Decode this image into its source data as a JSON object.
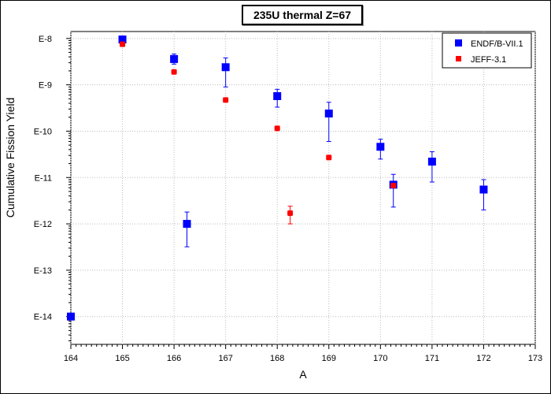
{
  "chart_data": {
    "type": "scatter",
    "title": "235U thermal Z=67",
    "xlabel": "A",
    "ylabel": "Cumulative Fission Yield",
    "xlim": [
      164,
      173
    ],
    "ylim_log10": [
      -14.6,
      -7.85
    ],
    "y_scale": "log",
    "x_ticks": [
      "164",
      "165",
      "166",
      "167",
      "168",
      "169",
      "170",
      "171",
      "172",
      "173"
    ],
    "y_ticks": [
      {
        "label": "E-8",
        "exp": -8
      },
      {
        "label": "E-9",
        "exp": -9
      },
      {
        "label": "E-10",
        "exp": -10
      },
      {
        "label": "E-11",
        "exp": -11
      },
      {
        "label": "E-12",
        "exp": -12
      },
      {
        "label": "E-13",
        "exp": -13
      },
      {
        "label": "E-14",
        "exp": -14
      }
    ],
    "legend_position": "top-right",
    "series": [
      {
        "name": "ENDF/B-VII.1",
        "color": "#0000ff",
        "marker": "square-large",
        "points": [
          {
            "x": 164,
            "y": 1e-14,
            "lo": null,
            "hi": null
          },
          {
            "x": 165,
            "y": 9.5e-09,
            "lo": 8e-09,
            "hi": 1.13e-08
          },
          {
            "x": 166,
            "y": 3.6e-09,
            "lo": 2.8e-09,
            "hi": 4.6e-09
          },
          {
            "x": 166.25,
            "y": 1e-12,
            "lo": 3.2e-13,
            "hi": 1.8e-12
          },
          {
            "x": 167,
            "y": 2.4e-09,
            "lo": 9e-10,
            "hi": 3.8e-09
          },
          {
            "x": 168,
            "y": 5.7e-10,
            "lo": 3.3e-10,
            "hi": 8e-10
          },
          {
            "x": 169,
            "y": 2.4e-10,
            "lo": 6e-11,
            "hi": 4.2e-10
          },
          {
            "x": 170,
            "y": 4.6e-11,
            "lo": 2.5e-11,
            "hi": 6.7e-11
          },
          {
            "x": 170.25,
            "y": 7e-12,
            "lo": 2.3e-12,
            "hi": 1.17e-11
          },
          {
            "x": 171,
            "y": 2.2e-11,
            "lo": 8e-12,
            "hi": 3.6e-11
          },
          {
            "x": 172,
            "y": 5.5e-12,
            "lo": 2e-12,
            "hi": 9e-12
          }
        ]
      },
      {
        "name": "JEFF-3.1",
        "color": "#ff0000",
        "marker": "square-small",
        "points": [
          {
            "x": 165,
            "y": 7.5e-09,
            "lo": null,
            "hi": null
          },
          {
            "x": 166,
            "y": 1.9e-09,
            "lo": null,
            "hi": null
          },
          {
            "x": 167,
            "y": 4.7e-10,
            "lo": null,
            "hi": null
          },
          {
            "x": 168,
            "y": 1.15e-10,
            "lo": null,
            "hi": null
          },
          {
            "x": 168.25,
            "y": 1.7e-12,
            "lo": 1e-12,
            "hi": 2.4e-12
          },
          {
            "x": 169,
            "y": 2.7e-11,
            "lo": null,
            "hi": null
          },
          {
            "x": 170.25,
            "y": 6.7e-12,
            "lo": null,
            "hi": null
          }
        ]
      }
    ]
  }
}
